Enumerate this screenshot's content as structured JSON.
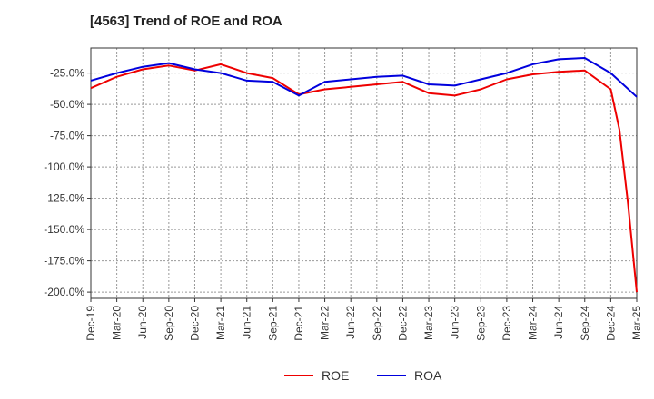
{
  "chart_data": {
    "type": "line",
    "title": "[4563]  Trend of ROE and ROA",
    "xlabel": "",
    "ylabel": "",
    "x_ticks": [
      "Dec-19",
      "Mar-20",
      "Jun-20",
      "Sep-20",
      "Dec-20",
      "Mar-21",
      "Jun-21",
      "Sep-21",
      "Dec-21",
      "Mar-22",
      "Jun-22",
      "Sep-22",
      "Dec-22",
      "Mar-23",
      "Jun-23",
      "Sep-23",
      "Dec-23",
      "Mar-24",
      "Jun-24",
      "Sep-24",
      "Dec-24",
      "Mar-25"
    ],
    "y_ticks": [
      "-25.0%",
      "-50.0%",
      "-75.0%",
      "-100.0%",
      "-125.0%",
      "-150.0%",
      "-175.0%",
      "-200.0%"
    ],
    "ylim": [
      -205,
      -5
    ],
    "grid": true,
    "legend_position": "bottom-center",
    "series": [
      {
        "name": "ROE",
        "color": "#ee0000",
        "points": [
          [
            "Dec-19",
            -37
          ],
          [
            "Mar-20",
            -28
          ],
          [
            "Jun-20",
            -22
          ],
          [
            "Sep-20",
            -19
          ],
          [
            "Dec-20",
            -23
          ],
          [
            "Mar-21",
            -18
          ],
          [
            "Jun-21",
            -25
          ],
          [
            "Sep-21",
            -29
          ],
          [
            "Dec-21",
            -42
          ],
          [
            "Mar-22",
            -38
          ],
          [
            "Jun-22",
            -36
          ],
          [
            "Sep-22",
            -34
          ],
          [
            "Dec-22",
            -32
          ],
          [
            "Mar-23",
            -41
          ],
          [
            "Jun-23",
            -43
          ],
          [
            "Sep-23",
            -38
          ],
          [
            "Dec-23",
            -30
          ],
          [
            "Mar-24",
            -26
          ],
          [
            "Jun-24",
            -24
          ],
          [
            "Sep-24",
            -23
          ],
          [
            "Dec-24",
            -38
          ],
          [
            "Jan-25",
            -70
          ],
          [
            "Feb-25",
            -130
          ],
          [
            "Mar-25",
            -200
          ]
        ]
      },
      {
        "name": "ROA",
        "color": "#0000dd",
        "points": [
          [
            "Dec-19",
            -31
          ],
          [
            "Mar-20",
            -25
          ],
          [
            "Jun-20",
            -20
          ],
          [
            "Sep-20",
            -17
          ],
          [
            "Dec-20",
            -22
          ],
          [
            "Mar-21",
            -25
          ],
          [
            "Jun-21",
            -31
          ],
          [
            "Sep-21",
            -32
          ],
          [
            "Dec-21",
            -43
          ],
          [
            "Mar-22",
            -32
          ],
          [
            "Jun-22",
            -30
          ],
          [
            "Sep-22",
            -28
          ],
          [
            "Dec-22",
            -27
          ],
          [
            "Mar-23",
            -34
          ],
          [
            "Jun-23",
            -35
          ],
          [
            "Sep-23",
            -30
          ],
          [
            "Dec-23",
            -25
          ],
          [
            "Mar-24",
            -18
          ],
          [
            "Jun-24",
            -14
          ],
          [
            "Sep-24",
            -13
          ],
          [
            "Dec-24",
            -25
          ],
          [
            "Mar-25",
            -44
          ]
        ]
      }
    ]
  }
}
